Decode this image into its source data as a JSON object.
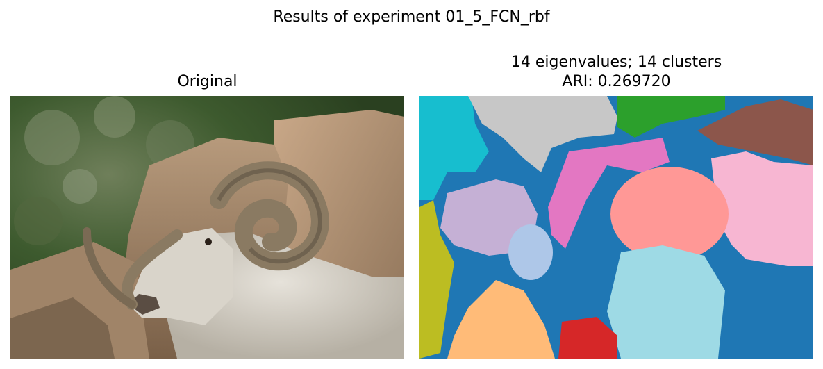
{
  "figure": {
    "suptitle": "Results of experiment 01_5_FCN_rbf"
  },
  "panels": [
    {
      "title": "Original",
      "image_subject": "ram with curled horns in front of rocks"
    },
    {
      "title_line1": "14 eigenvalues; 14 clusters",
      "title_line2": "ARI: 0.269720",
      "image_subject": "cluster segmentation map"
    }
  ],
  "colors": {
    "blue": "#1f77b4",
    "cyan": "#17becf",
    "gray": "#c7c7c7",
    "green": "#2ca02c",
    "brown": "#8c564b",
    "pink": "#e377c2",
    "light_pink": "#f7b6d2",
    "salmon": "#ff9896",
    "lavender": "#c5b0d5",
    "light_blue": "#aec7e8",
    "olive": "#bcbd22",
    "light_cyan": "#9edae5",
    "orange": "#ffbb78",
    "red": "#d62728"
  }
}
